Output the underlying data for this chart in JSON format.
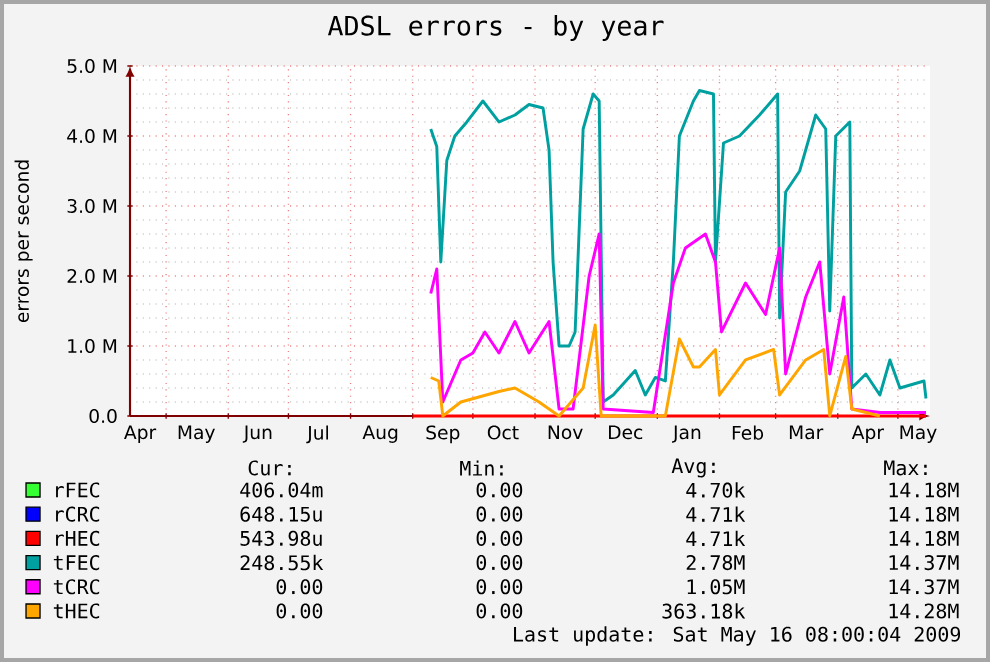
{
  "chart_data": {
    "type": "line",
    "title": "ADSL errors - by year",
    "ylabel": "errors per second",
    "xlim": [
      "2008-04-13",
      "2009-05-17"
    ],
    "xticks": [
      {
        "value": "2008-05-01",
        "label": null
      },
      {
        "value": "2008-06-01",
        "label": null
      },
      {
        "value": "2008-07-01",
        "label": null
      },
      {
        "value": "2008-08-01",
        "label": null
      },
      {
        "value": "2008-09-01",
        "label": null
      },
      {
        "value": "2008-10-01",
        "label": null
      },
      {
        "value": "2008-11-01",
        "label": null
      },
      {
        "value": "2008-12-01",
        "label": null
      },
      {
        "value": "2009-01-01",
        "label": null
      },
      {
        "value": "2009-02-01",
        "label": null
      },
      {
        "value": "2009-03-01",
        "label": null
      },
      {
        "value": "2009-04-01",
        "label": null
      },
      {
        "value": "2009-05-01",
        "label": null
      },
      {
        "value": "2008-04-18",
        "label": "Apr"
      },
      {
        "value": "2008-05-16",
        "label": "May"
      },
      {
        "value": "2008-06-16",
        "label": "Jun"
      },
      {
        "value": "2008-07-16",
        "label": "Jul"
      },
      {
        "value": "2008-08-16",
        "label": "Aug"
      },
      {
        "value": "2008-09-16",
        "label": "Sep"
      },
      {
        "value": "2008-10-16",
        "label": "Oct"
      },
      {
        "value": "2008-11-16",
        "label": "Nov"
      },
      {
        "value": "2008-12-16",
        "label": "Dec"
      },
      {
        "value": "2009-01-16",
        "label": "Jan"
      },
      {
        "value": "2009-02-15",
        "label": "Feb"
      },
      {
        "value": "2009-03-16",
        "label": "Mar"
      },
      {
        "value": "2009-04-16",
        "label": "Apr"
      },
      {
        "value": "2009-05-11",
        "label": "May"
      }
    ],
    "ylim": [
      0,
      5
    ],
    "yticks": [
      {
        "value": 0,
        "label": "0.0"
      },
      {
        "value": 1,
        "label": "1.0 M"
      },
      {
        "value": 2,
        "label": "2.0 M"
      },
      {
        "value": 3,
        "label": "3.0 M"
      },
      {
        "value": 4,
        "label": "4.0 M"
      },
      {
        "value": 5,
        "label": "5.0 M"
      },
      {
        "value": 0.2,
        "label": null
      },
      {
        "value": 0.4,
        "label": null
      },
      {
        "value": 0.6,
        "label": null
      },
      {
        "value": 0.8,
        "label": null
      },
      {
        "value": 1.2,
        "label": null
      },
      {
        "value": 1.4,
        "label": null
      },
      {
        "value": 1.6,
        "label": null
      },
      {
        "value": 1.8,
        "label": null
      },
      {
        "value": 2.2,
        "label": null
      },
      {
        "value": 2.4,
        "label": null
      },
      {
        "value": 2.6,
        "label": null
      },
      {
        "value": 2.8,
        "label": null
      },
      {
        "value": 3.2,
        "label": null
      },
      {
        "value": 3.4,
        "label": null
      },
      {
        "value": 3.6,
        "label": null
      },
      {
        "value": 3.8,
        "label": null
      },
      {
        "value": 4.2,
        "label": null
      },
      {
        "value": 4.4,
        "label": null
      },
      {
        "value": 4.6,
        "label": null
      },
      {
        "value": 4.8,
        "label": null
      }
    ],
    "grid": true,
    "legend": "bottom",
    "marker": "none",
    "line_style": "solid",
    "series": [
      {
        "name": "rFEC",
        "color": "#33ff33"
      },
      {
        "name": "rCRC",
        "color": "#0000ff"
      },
      {
        "name": "rHEC",
        "color": "#ff0000",
        "x": [
          "2008-09-01",
          "2009-05-15"
        ],
        "values": [
          0,
          0
        ]
      },
      {
        "name": "tFEC",
        "color": "#00a0a0",
        "x": [
          "2008-09-10",
          "2008-09-13",
          "2008-09-15",
          "2008-09-18",
          "2008-09-22",
          "2008-09-28",
          "2008-10-06",
          "2008-10-14",
          "2008-10-22",
          "2008-10-29",
          "2008-11-05",
          "2008-11-08",
          "2008-11-10",
          "2008-11-13",
          "2008-11-18",
          "2008-11-21",
          "2008-11-25",
          "2008-11-30",
          "2008-12-03",
          "2008-12-05",
          "2008-12-10",
          "2008-12-21",
          "2008-12-26",
          "2008-12-31",
          "2009-01-05",
          "2009-01-09",
          "2009-01-12",
          "2009-01-19",
          "2009-01-22",
          "2009-01-29",
          "2009-01-30",
          "2009-02-03",
          "2009-02-11",
          "2009-02-21",
          "2009-03-02",
          "2009-03-03",
          "2009-03-06",
          "2009-03-13",
          "2009-03-21",
          "2009-03-26",
          "2009-03-28",
          "2009-03-31",
          "2009-04-07",
          "2009-04-08",
          "2009-04-15",
          "2009-04-22",
          "2009-04-27",
          "2009-05-02",
          "2009-05-14",
          "2009-05-15"
        ],
        "values": [
          4.1,
          3.85,
          2.2,
          3.65,
          4.0,
          4.2,
          4.5,
          4.2,
          4.3,
          4.45,
          4.4,
          3.8,
          2.2,
          1.0,
          1.0,
          1.2,
          4.1,
          4.6,
          4.5,
          0.2,
          0.3,
          0.65,
          0.3,
          0.55,
          0.5,
          2.2,
          4.0,
          4.5,
          4.65,
          4.6,
          2.2,
          3.9,
          4.0,
          4.3,
          4.6,
          1.4,
          3.2,
          3.5,
          4.3,
          4.1,
          1.5,
          4.0,
          4.2,
          0.4,
          0.6,
          0.3,
          0.8,
          0.4,
          0.5,
          0.25
        ]
      },
      {
        "name": "tCRC",
        "color": "#ff00ff",
        "x": [
          "2008-09-10",
          "2008-09-13",
          "2008-09-16",
          "2008-09-25",
          "2008-10-01",
          "2008-10-07",
          "2008-10-14",
          "2008-10-22",
          "2008-10-29",
          "2008-11-08",
          "2008-11-13",
          "2008-11-20",
          "2008-11-28",
          "2008-12-03",
          "2008-12-05",
          "2008-12-30",
          "2009-01-09",
          "2009-01-15",
          "2009-01-20",
          "2009-01-25",
          "2009-01-30",
          "2009-02-02",
          "2009-02-14",
          "2009-02-24",
          "2009-03-03",
          "2009-03-06",
          "2009-03-16",
          "2009-03-23",
          "2009-03-28",
          "2009-04-04",
          "2009-04-08",
          "2009-04-22",
          "2009-05-15"
        ],
        "values": [
          1.75,
          2.1,
          0.2,
          0.8,
          0.9,
          1.2,
          0.9,
          1.35,
          0.9,
          1.35,
          0.1,
          0.1,
          2.0,
          2.6,
          0.1,
          0.05,
          1.9,
          2.4,
          2.5,
          2.6,
          2.2,
          1.2,
          1.9,
          1.45,
          2.4,
          0.6,
          1.7,
          2.2,
          0.6,
          1.7,
          0.1,
          0.05,
          0.05
        ]
      },
      {
        "name": "tHEC",
        "color": "#ffa500",
        "x": [
          "2008-09-10",
          "2008-09-14",
          "2008-09-16",
          "2008-09-25",
          "2008-10-14",
          "2008-10-22",
          "2008-11-03",
          "2008-11-13",
          "2008-11-25",
          "2008-12-01",
          "2008-12-04",
          "2009-01-05",
          "2009-01-12",
          "2009-01-19",
          "2009-01-22",
          "2009-01-30",
          "2009-02-01",
          "2009-02-14",
          "2009-02-28",
          "2009-03-03",
          "2009-03-16",
          "2009-03-25",
          "2009-03-28",
          "2009-04-05",
          "2009-04-08",
          "2009-04-22"
        ],
        "values": [
          0.55,
          0.5,
          0.0,
          0.2,
          0.35,
          0.4,
          0.2,
          0.0,
          0.4,
          1.3,
          0.0,
          0.0,
          1.1,
          0.7,
          0.7,
          0.95,
          0.3,
          0.8,
          0.95,
          0.3,
          0.8,
          0.95,
          0.0,
          0.85,
          0.1,
          0.0
        ]
      }
    ],
    "annotations": [
      "Cur:",
      "Min:",
      "Avg:",
      "Max:",
      "406.04m",
      "0.00",
      "4.70k",
      "14.18M",
      "648.15u",
      "0.00",
      "4.71k",
      "14.18M",
      "543.98u",
      "0.00",
      "4.71k",
      "14.18M",
      "248.55k",
      "0.00",
      "2.78M",
      "14.37M",
      "0.00",
      "0.00",
      "1.05M",
      "14.37M",
      "0.00",
      "0.00",
      "363.18k",
      "14.28M",
      "Last update: Sat May 16 08:00:04 2009"
    ]
  }
}
